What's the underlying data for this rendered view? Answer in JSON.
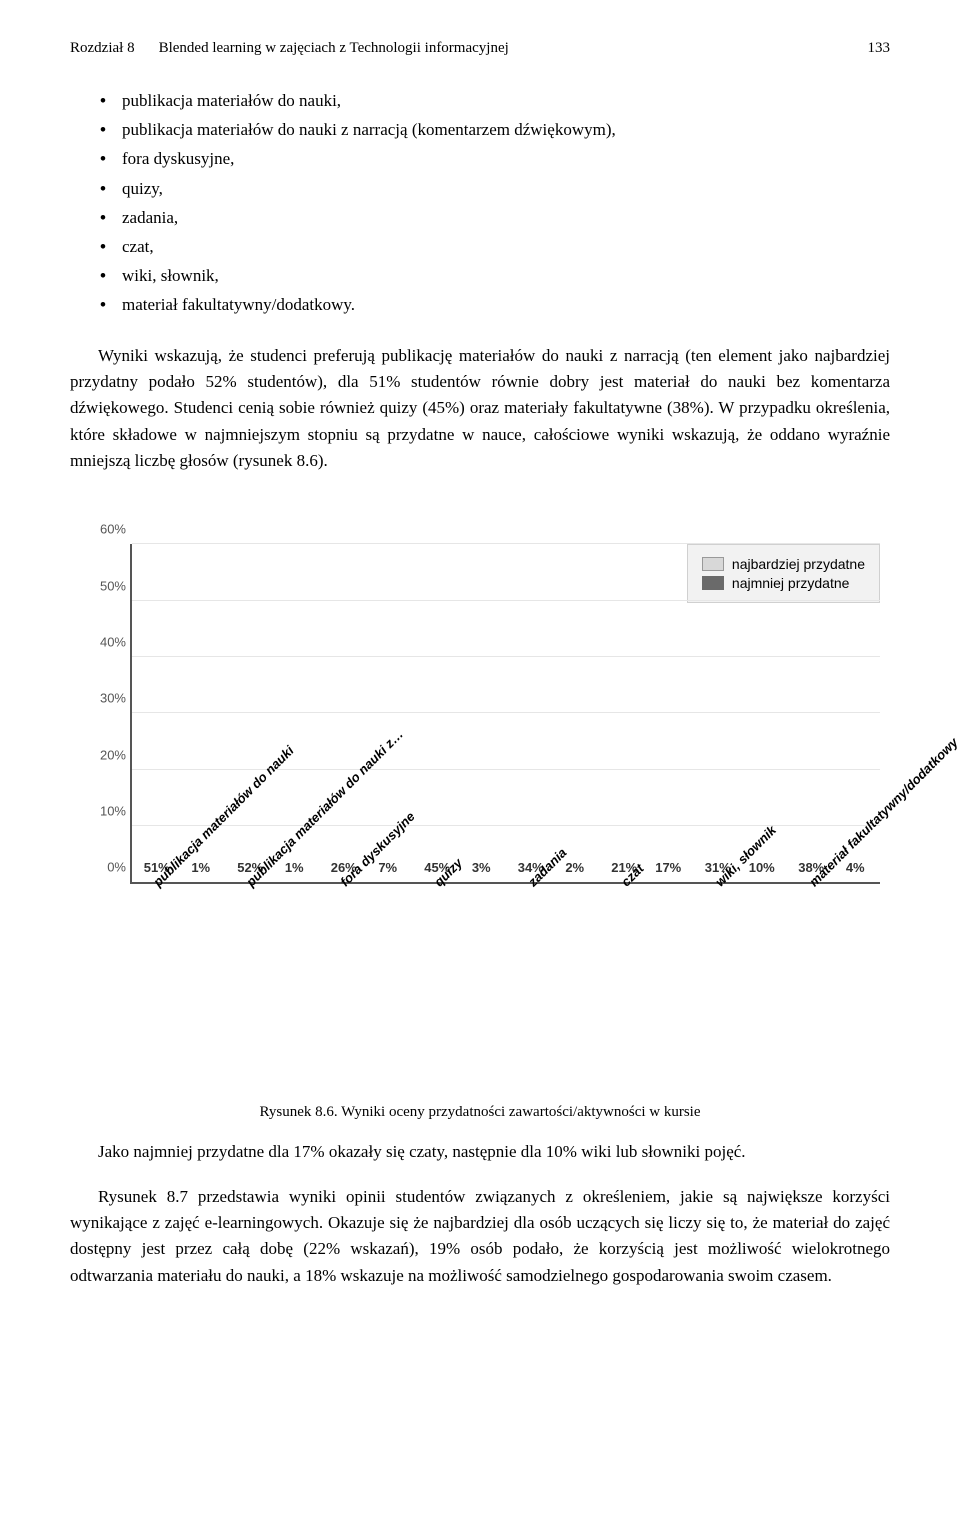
{
  "header": {
    "chapter": "Rozdział 8",
    "title": "Blended learning w zajęciach z Technologii informacyjnej",
    "page": "133"
  },
  "bullets": {
    "items": [
      "publikacja materiałów do nauki,",
      "publikacja materiałów do nauki z narracją (komentarzem dźwiękowym),",
      "fora dyskusyjne,",
      "quizy,",
      "zadania,",
      "czat,",
      "wiki, słownik,",
      "materiał fakultatywny/dodatkowy."
    ]
  },
  "paragraph1": "Wyniki wskazują, że studenci preferują publikację materiałów do nauki z narracją (ten element jako najbardziej przydatny podało 52% studentów), dla 51% studentów równie dobry jest materiał do nauki bez komentarza dźwiękowego. Studenci cenią sobie również quizy (45%) oraz materiały fakultatywne (38%). W przypadku określenia, które składowe w najmniejszym stopniu są przydatne w nauce, całościowe wyniki wskazują, że oddano wyraźnie mniejszą liczbę głosów (rysunek 8.6).",
  "caption": "Rysunek 8.6. Wyniki oceny przydatności zawartości/aktywności w kursie",
  "paragraph2": "Jako najmniej przydatne dla 17% okazały się czaty, następnie dla 10% wiki lub słowniki pojęć.",
  "paragraph3": "Rysunek 8.7 przedstawia wyniki opinii studentów związanych z określeniem, jakie są największe korzyści wynikające z zajęć e-learningowych. Okazuje się że najbardziej dla osób uczących się liczy się to, że materiał do zajęć dostępny jest przez całą dobę (22% wskazań), 19% osób podało, że korzyścią jest możliwość wielokrotnego odtwarzania materiału do nauki, a 18% wskazuje na możliwość samodzielnego gospodarowania swoim czasem.",
  "chart": {
    "type": "bar",
    "legend": {
      "series1": "najbardziej przydatne",
      "series2": "najmniej przydatne"
    },
    "colors": {
      "series1": "#d8d8d8",
      "series2": "#6a6a6a",
      "grid": "#e6e6e6",
      "axis": "#555555",
      "legend_bg": "#f2f2f2"
    },
    "y_ticks": [
      "0%",
      "10%",
      "20%",
      "30%",
      "40%",
      "50%",
      "60%"
    ],
    "y_max": 60,
    "categories": [
      {
        "label": "publikacja materiałów do nauki",
        "v1": 51,
        "v2": 1
      },
      {
        "label": "publikacja materiałów do nauki z…",
        "v1": 52,
        "v2": 1
      },
      {
        "label": "fora dyskusyjne",
        "v1": 26,
        "v2": 7
      },
      {
        "label": "quizy",
        "v1": 45,
        "v2": 3
      },
      {
        "label": "zadania",
        "v1": 34,
        "v2": 2
      },
      {
        "label": "czat",
        "v1": 21,
        "v2": 17
      },
      {
        "label": "wiki, słownik",
        "v1": 31,
        "v2": 10
      },
      {
        "label": "materiał fakultatywny/dodatkowy",
        "v1": 38,
        "v2": 4
      }
    ]
  }
}
